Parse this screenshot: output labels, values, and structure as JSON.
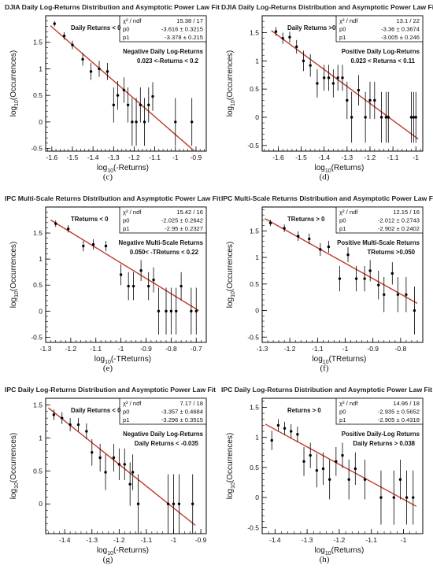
{
  "chart_data": [
    {
      "type": "scatter",
      "panel": "c",
      "title": "DJIA Daily Log-Returns Distribution and Asymptotic Power Law Fit",
      "xlabel_main": "log",
      "xlabel_sub": "10",
      "xlabel_rest": "(-Returns)",
      "ylabel_main": "log",
      "ylabel_sub": "10",
      "ylabel_rest": "(Occurrences)",
      "xlim": [
        -1.63,
        -0.85
      ],
      "ylim": [
        -0.55,
        2.0
      ],
      "xticks": [
        -1.6,
        -1.5,
        -1.4,
        -1.3,
        -1.2,
        -1.1,
        -1,
        -0.9
      ],
      "xticklabels": [
        "-1.6",
        "-1.5",
        "-1.4",
        "-1.3",
        "-1.2",
        "-1.1",
        "-1",
        "-0.9"
      ],
      "yticks": [
        -0.5,
        0,
        0.5,
        1,
        1.5
      ],
      "yticklabels": [
        "-0.5",
        "0",
        "0.5",
        "1",
        "1.5"
      ],
      "annotations": [
        "Daily Returns < 0",
        "Negative Daily Log-Returns",
        "0.023 <-Returns < 0.2"
      ],
      "stats": [
        [
          "χ² / ndf",
          "15.38 / 17"
        ],
        [
          "p0",
          "-3.616 ± 0.3215"
        ],
        [
          "p1",
          "-3.378 ± 0.215"
        ]
      ],
      "fit": {
        "p0": -3.616,
        "p1": -3.378
      },
      "x": [
        -1.587,
        -1.54,
        -1.5,
        -1.45,
        -1.41,
        -1.37,
        -1.33,
        -1.3,
        -1.28,
        -1.25,
        -1.23,
        -1.21,
        -1.19,
        -1.17,
        -1.15,
        -1.13,
        -1.11,
        -1.0,
        -0.92
      ],
      "y": [
        1.85,
        1.62,
        1.45,
        1.18,
        0.95,
        1.0,
        0.95,
        0.32,
        0.5,
        0.6,
        0.32,
        0.0,
        0.0,
        0.32,
        0.0,
        0.32,
        0.48,
        0.0,
        0.0
      ],
      "yerr": [
        0.05,
        0.07,
        0.08,
        0.12,
        0.16,
        0.15,
        0.16,
        0.33,
        0.27,
        0.24,
        0.33,
        0.45,
        0.45,
        0.33,
        0.45,
        0.33,
        0.27,
        0.45,
        0.45
      ],
      "caption": "(c)"
    },
    {
      "type": "scatter",
      "panel": "d",
      "title": "DJIA Daily Log-Returns Distribution and Asymptotic Power Law Fit",
      "xlabel_main": "log",
      "xlabel_sub": "10",
      "xlabel_rest": "(Returns)",
      "ylabel_main": "log",
      "ylabel_sub": "10",
      "ylabel_rest": "(Occurrences)",
      "xlim": [
        -1.67,
        -0.97
      ],
      "ylim": [
        -0.6,
        1.8
      ],
      "xticks": [
        -1.6,
        -1.5,
        -1.4,
        -1.3,
        -1.2,
        -1.1,
        -1
      ],
      "xticklabels": [
        "-1.6",
        "-1.5",
        "-1.4",
        "-1.3",
        "-1.2",
        "-1.1",
        "-1"
      ],
      "yticks": [
        -0.5,
        0,
        0.5,
        1,
        1.5
      ],
      "yticklabels": [
        "-0.5",
        "0",
        "0.5",
        "1",
        "1.5"
      ],
      "annotations": [
        "Daily Returns >0",
        "Positive Daily Log-Returns",
        "0.023 < Returns < 0.11"
      ],
      "stats": [
        [
          "χ² / ndf",
          "13.1 / 22"
        ],
        [
          "p0",
          "-3.36 ± 0.3674"
        ],
        [
          "p1",
          "-3.005 ± 0.246"
        ]
      ],
      "fit": {
        "p0": -3.36,
        "p1": -3.005
      },
      "x": [
        -1.61,
        -1.58,
        -1.55,
        -1.52,
        -1.49,
        -1.46,
        -1.43,
        -1.4,
        -1.38,
        -1.36,
        -1.34,
        -1.32,
        -1.3,
        -1.28,
        -1.25,
        -1.22,
        -1.2,
        -1.18,
        -1.15,
        -1.13,
        -1.12,
        -1.02,
        -1.01,
        -1.0
      ],
      "y": [
        1.52,
        1.4,
        1.42,
        1.25,
        1.0,
        0.92,
        0.6,
        0.7,
        0.7,
        0.6,
        0.7,
        0.7,
        0.3,
        0.0,
        0.48,
        0.0,
        0.3,
        0.3,
        0.0,
        0.0,
        0.0,
        0.0,
        0.0,
        0.0
      ],
      "yerr": [
        0.08,
        0.1,
        0.1,
        0.12,
        0.18,
        0.2,
        0.25,
        0.23,
        0.23,
        0.25,
        0.23,
        0.23,
        0.33,
        0.45,
        0.27,
        0.45,
        0.33,
        0.33,
        0.45,
        0.45,
        0.45,
        0.45,
        0.45,
        0.45
      ],
      "caption": "(d)"
    },
    {
      "type": "scatter",
      "panel": "e",
      "title": "IPC Multi-Scale Returns Distribution and Asymptotic Power Law Fit",
      "xlabel_main": "log",
      "xlabel_sub": "10",
      "xlabel_rest": "(-TReturns)",
      "ylabel_main": "log",
      "ylabel_sub": "10",
      "ylabel_rest": "(Occurrences)",
      "xlim": [
        -1.3,
        -0.66
      ],
      "ylim": [
        -0.6,
        2.0
      ],
      "xticks": [
        -1.3,
        -1.2,
        -1.1,
        -1,
        -0.9,
        -0.8,
        -0.7
      ],
      "xticklabels": [
        "-1.3",
        "-1.2",
        "-1.1",
        "-1",
        "-0.9",
        "-0.8",
        "-0.7"
      ],
      "yticks": [
        -0.5,
        0,
        0.5,
        1,
        1.5
      ],
      "yticklabels": [
        "-0.5",
        "0",
        "0.5",
        "1",
        "1.5"
      ],
      "annotations": [
        "TReturns < 0",
        "Negative Multi-Scale Returns",
        "0.050< -TReturns < 0.22"
      ],
      "stats": [
        [
          "χ² / ndf",
          "15.42 / 16"
        ],
        [
          "p0",
          "-2.025 ± 0.2642"
        ],
        [
          "p1",
          "-2.95 ± 0.2327"
        ]
      ],
      "fit": {
        "p0": -2.025,
        "p1": -2.95
      },
      "x": [
        -1.26,
        -1.21,
        -1.15,
        -1.11,
        -1.06,
        -1.0,
        -0.97,
        -0.95,
        -0.92,
        -0.89,
        -0.87,
        -0.85,
        -0.82,
        -0.8,
        -0.78,
        -0.76,
        -0.72,
        -0.7
      ],
      "y": [
        1.68,
        1.58,
        1.25,
        1.28,
        1.25,
        0.7,
        0.48,
        0.48,
        0.78,
        0.48,
        0.6,
        0.0,
        0.0,
        0.0,
        0.0,
        0.48,
        0.0,
        0.0
      ],
      "yerr": [
        0.06,
        0.07,
        0.1,
        0.1,
        0.1,
        0.2,
        0.27,
        0.27,
        0.2,
        0.27,
        0.24,
        0.45,
        0.45,
        0.45,
        0.45,
        0.27,
        0.45,
        0.45
      ],
      "caption": "(e)"
    },
    {
      "type": "scatter",
      "panel": "f",
      "title": "IPC Multi-Scale Returns Distribution and Asymptotic Power Law Fit",
      "xlabel_main": "log",
      "xlabel_sub": "10",
      "xlabel_rest": "(TReturns)",
      "ylabel_main": "log",
      "ylabel_sub": "10",
      "ylabel_rest": "(Occurrences)",
      "xlim": [
        -1.3,
        -0.72
      ],
      "ylim": [
        -0.6,
        1.95
      ],
      "xticks": [
        -1.3,
        -1.2,
        -1.1,
        -1,
        -0.9,
        -0.8
      ],
      "xticklabels": [
        "-1.3",
        "-1.2",
        "-1.1",
        "-1",
        "-0.9",
        "-0.8"
      ],
      "yticks": [
        -0.5,
        0,
        0.5,
        1,
        1.5
      ],
      "yticklabels": [
        "-0.5",
        "0",
        "0.5",
        "1",
        "1.5"
      ],
      "annotations": [
        "TReturns > 0",
        "Positive Multi-Scale Returns",
        "TReturns >0.050"
      ],
      "stats": [
        [
          "χ² / ndf",
          "12.15 / 16"
        ],
        [
          "p0",
          "-2.012 ± 0.2743"
        ],
        [
          "p1",
          "-2.902 ± 0.2402"
        ]
      ],
      "fit": {
        "p0": -2.012,
        "p1": -2.902
      },
      "x": [
        -1.27,
        -1.22,
        -1.17,
        -1.13,
        -1.09,
        -1.06,
        -1.02,
        -0.99,
        -0.96,
        -0.93,
        -0.91,
        -0.88,
        -0.86,
        -0.83,
        -0.81,
        -0.78,
        -0.75
      ],
      "y": [
        1.65,
        1.55,
        1.4,
        1.35,
        1.15,
        1.2,
        0.6,
        1.05,
        0.6,
        0.6,
        0.75,
        0.48,
        0.3,
        0.7,
        0.3,
        0.3,
        0.0
      ],
      "yerr": [
        0.06,
        0.07,
        0.09,
        0.1,
        0.12,
        0.11,
        0.24,
        0.14,
        0.24,
        0.24,
        0.2,
        0.27,
        0.33,
        0.21,
        0.33,
        0.33,
        0.45
      ],
      "caption": "(f)"
    },
    {
      "type": "scatter",
      "panel": "g",
      "title": "IPC Daily Log-Returns Distribution and Asymptotic Power Law Fit",
      "xlabel_main": "log",
      "xlabel_sub": "10",
      "xlabel_rest": "(-Returns)",
      "ylabel_main": "log",
      "ylabel_sub": "10",
      "ylabel_rest": "(Occurrences)",
      "xlim": [
        -1.47,
        -0.88
      ],
      "ylim": [
        -0.45,
        1.6
      ],
      "xticks": [
        -1.4,
        -1.3,
        -1.2,
        -1.1,
        -1,
        -0.9
      ],
      "xticklabels": [
        "-1.4",
        "-1.3",
        "-1.2",
        "-1.1",
        "-1",
        "-0.9"
      ],
      "yticks": [
        0,
        0.5,
        1,
        1.5
      ],
      "yticklabels": [
        "0",
        "0.5",
        "1",
        "1.5"
      ],
      "annotations": [
        "Daily Returns < 0",
        "Negative Daily Log-Returns",
        "Daily Returns < -0.035"
      ],
      "stats": [
        [
          "χ² / ndf",
          "7.17 / 18"
        ],
        [
          "p0",
          "-3.357 ± 0.4684"
        ],
        [
          "p1",
          "-3.296 ± 0.3515"
        ]
      ],
      "fit": {
        "p0": -3.357,
        "p1": -3.296
      },
      "x": [
        -1.44,
        -1.41,
        -1.38,
        -1.35,
        -1.32,
        -1.3,
        -1.27,
        -1.25,
        -1.22,
        -1.2,
        -1.18,
        -1.16,
        -1.15,
        -1.13,
        -1.02,
        -1.0,
        -0.98,
        -0.93
      ],
      "y": [
        1.35,
        1.3,
        1.2,
        1.2,
        1.1,
        0.78,
        0.7,
        0.48,
        0.7,
        0.6,
        0.6,
        0.3,
        0.48,
        0.0,
        0.0,
        0.0,
        0.0,
        0.0
      ],
      "yerr": [
        0.08,
        0.09,
        0.1,
        0.1,
        0.12,
        0.2,
        0.21,
        0.27,
        0.21,
        0.24,
        0.24,
        0.33,
        0.27,
        0.45,
        0.45,
        0.45,
        0.45,
        0.45
      ],
      "caption": "(g)"
    },
    {
      "type": "scatter",
      "panel": "h",
      "title": "IPC Daily Log-Returns Distribution and Asymptotic Power Law Fit",
      "xlabel_main": "log",
      "xlabel_sub": "10",
      "xlabel_rest": "(Returns)",
      "ylabel_main": "log",
      "ylabel_sub": "10",
      "ylabel_rest": "(Occurrences)",
      "xlim": [
        -1.44,
        -0.94
      ],
      "ylim": [
        -0.6,
        1.65
      ],
      "xticks": [
        -1.4,
        -1.3,
        -1.2,
        -1.1,
        -1
      ],
      "xticklabels": [
        "-1.4",
        "-1.3",
        "-1.2",
        "-1.1",
        "-1"
      ],
      "yticks": [
        -0.5,
        0,
        0.5,
        1,
        1.5
      ],
      "yticklabels": [
        "-0.5",
        "0",
        "0.5",
        "1",
        "1.5"
      ],
      "annotations": [
        "Returns > 0",
        "Positive Daily-Log Returns",
        "Daily Returns > 0.038"
      ],
      "stats": [
        [
          "χ² / ndf",
          "14.96 / 18"
        ],
        [
          "p0",
          "-2.935 ± 0.5652"
        ],
        [
          "p1",
          "-2.905 ± 0.4318"
        ]
      ],
      "fit": {
        "p0": -2.935,
        "p1": -2.905
      },
      "x": [
        -1.41,
        -1.39,
        -1.37,
        -1.35,
        -1.33,
        -1.31,
        -1.29,
        -1.27,
        -1.25,
        -1.23,
        -1.21,
        -1.19,
        -1.17,
        -1.15,
        -1.12,
        -1.07,
        -1.03,
        -1.01,
        -0.99,
        -0.97
      ],
      "y": [
        0.95,
        1.2,
        1.15,
        1.1,
        1.05,
        0.6,
        0.7,
        0.45,
        0.48,
        0.3,
        0.6,
        0.7,
        0.3,
        0.48,
        0.3,
        0.0,
        0.0,
        0.3,
        0.0,
        0.0
      ],
      "yerr": [
        0.16,
        0.1,
        0.11,
        0.12,
        0.13,
        0.24,
        0.21,
        0.28,
        0.27,
        0.33,
        0.24,
        0.21,
        0.33,
        0.27,
        0.33,
        0.45,
        0.45,
        0.33,
        0.45,
        0.45
      ],
      "caption": "(h)"
    }
  ],
  "colors": {
    "fit_line": "#c0392b",
    "points": "#000000",
    "frame": "#000000"
  }
}
